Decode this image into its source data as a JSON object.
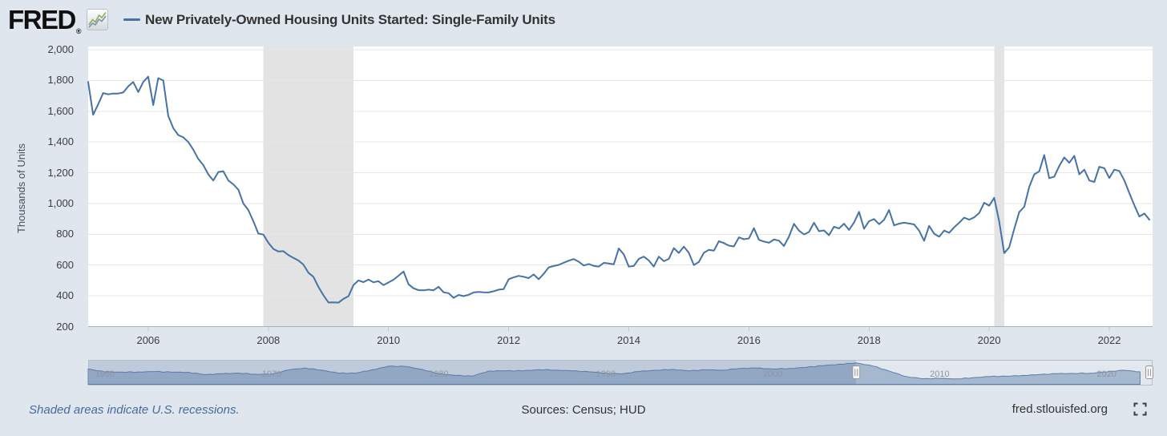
{
  "header": {
    "brand": "FRED",
    "reg": "®",
    "title": "New Privately-Owned Housing Units Started: Single-Family Units"
  },
  "colors": {
    "background": "#dfe6ee",
    "plot_background": "#ffffff",
    "series_line": "#4572a7",
    "recession_band": "#e3e3e3",
    "gridline": "#e7e7e7",
    "axis_line": "#a8b0b9",
    "navigator_fill": "#a5b8d0",
    "navigator_stroke": "#5d7ea9",
    "navigator_mask": "rgba(88,114,160,0.25)",
    "navigator_outline": "#b4bec9"
  },
  "icons": {
    "logo_chart": "sparkline",
    "fullscreen": "corner-brackets"
  },
  "chart_data": {
    "type": "line",
    "title": "New Privately-Owned Housing Units Started: Single-Family Units",
    "ylabel": "Thousands of Units",
    "xlabel": "",
    "frequency": "monthly",
    "grid": "horizontal-only",
    "ylim": [
      200,
      2000
    ],
    "x_range": [
      "2005-01",
      "2022-09"
    ],
    "y_ticks": [
      {
        "v": 2000,
        "label": "2,000"
      },
      {
        "v": 1800,
        "label": "1,800"
      },
      {
        "v": 1600,
        "label": "1,600"
      },
      {
        "v": 1400,
        "label": "1,400"
      },
      {
        "v": 1200,
        "label": "1,200"
      },
      {
        "v": 1000,
        "label": "1,000"
      },
      {
        "v": 800,
        "label": "800"
      },
      {
        "v": 600,
        "label": "600"
      },
      {
        "v": 400,
        "label": "400"
      },
      {
        "v": 200,
        "label": "200"
      }
    ],
    "x_ticks": [
      2006,
      2008,
      2010,
      2012,
      2014,
      2016,
      2018,
      2020,
      2022
    ],
    "recessions": [
      {
        "start": "2007-12",
        "end": "2009-06"
      },
      {
        "start": "2020-02",
        "end": "2020-04"
      }
    ],
    "series": [
      {
        "name": "New Privately-Owned Housing Units Started: Single-Family Units",
        "color": "#4572a7",
        "start": "2005-01",
        "values": [
          1790,
          1577,
          1645,
          1718,
          1710,
          1715,
          1715,
          1722,
          1762,
          1790,
          1725,
          1790,
          1825,
          1640,
          1815,
          1800,
          1570,
          1490,
          1445,
          1430,
          1400,
          1350,
          1290,
          1250,
          1190,
          1150,
          1205,
          1210,
          1150,
          1125,
          1090,
          1000,
          958,
          885,
          805,
          798,
          745,
          705,
          688,
          690,
          665,
          647,
          630,
          603,
          550,
          524,
          458,
          404,
          357,
          358,
          356,
          380,
          398,
          470,
          500,
          489,
          506,
          488,
          495,
          470,
          487,
          505,
          531,
          558,
          475,
          449,
          437,
          436,
          440,
          436,
          459,
          423,
          417,
          387,
          406,
          398,
          407,
          422,
          425,
          423,
          422,
          430,
          440,
          444,
          508,
          520,
          530,
          524,
          515,
          539,
          508,
          543,
          585,
          594,
          601,
          615,
          628,
          639,
          622,
          597,
          607,
          595,
          590,
          614,
          610,
          605,
          708,
          670,
          590,
          594,
          640,
          655,
          630,
          590,
          655,
          625,
          640,
          710,
          679,
          720,
          680,
          600,
          620,
          680,
          699,
          694,
          755,
          743,
          726,
          721,
          780,
          768,
          773,
          840,
          764,
          753,
          745,
          766,
          759,
          724,
          784,
          868,
          824,
          799,
          815,
          875,
          820,
          825,
          794,
          849,
          838,
          869,
          829,
          876,
          946,
          836,
          885,
          899,
          866,
          894,
          958,
          858,
          869,
          875,
          870,
          864,
          824,
          758,
          855,
          804,
          784,
          824,
          810,
          845,
          875,
          908,
          895,
          910,
          938,
          1005,
          986,
          1037,
          885,
          678,
          715,
          835,
          944,
          979,
          1108,
          1190,
          1209,
          1315,
          1165,
          1175,
          1244,
          1300,
          1265,
          1310,
          1190,
          1220,
          1150,
          1140,
          1239,
          1230,
          1166,
          1220,
          1212,
          1150,
          1068,
          988,
          916,
          935,
          895
        ]
      }
    ]
  },
  "navigator": {
    "x_ticks": [
      1960,
      1970,
      1980,
      1990,
      2000,
      2010,
      2020
    ],
    "full_range_years": [
      1959,
      2022.75
    ],
    "selected_range_years": [
      2005,
      2022.75
    ],
    "series_annual": {
      "start_year": 1959,
      "values": [
        1230,
        995,
        975,
        990,
        1020,
        970,
        963,
        779,
        844,
        899,
        811,
        813,
        1151,
        1309,
        1132,
        888,
        892,
        1162,
        1451,
        1433,
        1194,
        852,
        705,
        663,
        1068,
        1084,
        1072,
        1179,
        1146,
        1081,
        1003,
        895,
        840,
        1030,
        1126,
        1198,
        1076,
        1161,
        1134,
        1271,
        1302,
        1231,
        1273,
        1359,
        1499,
        1611,
        1716,
        1465,
        1046,
        622,
        445,
        471,
        431,
        535,
        618,
        648,
        715,
        782,
        849,
        876,
        888,
        991,
        1127,
        1005
      ]
    }
  },
  "footer": {
    "note": "Shaded areas indicate U.S. recessions.",
    "sources": "Sources: Census; HUD",
    "site": "fred.stlouisfed.org"
  }
}
